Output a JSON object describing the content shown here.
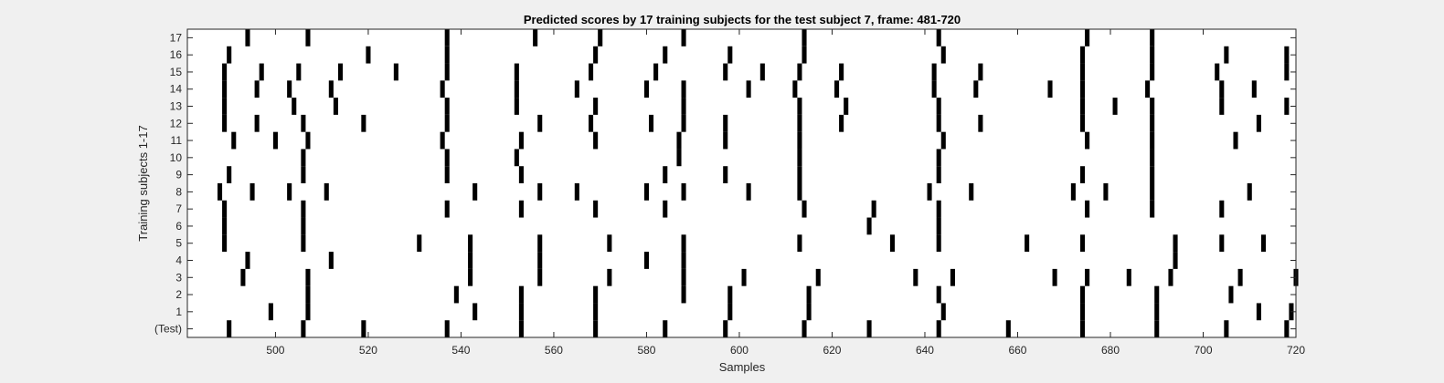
{
  "chart_data": {
    "type": "scatter",
    "title": "Predicted scores by 17 training subjects for the test subject 7, frame: 481-720",
    "xlabel": "Samples",
    "ylabel": "Training subjects 1-17",
    "xlim": [
      481,
      720
    ],
    "ylim": [
      -0.5,
      17.5
    ],
    "x_ticks": [
      500,
      520,
      540,
      560,
      580,
      600,
      620,
      640,
      660,
      680,
      700,
      720
    ],
    "y_tick_labels": [
      "(Test)",
      "1",
      "2",
      "3",
      "4",
      "5",
      "6",
      "7",
      "8",
      "9",
      "10",
      "11",
      "12",
      "13",
      "14",
      "15",
      "16",
      "17"
    ],
    "grid": false,
    "legend": "none",
    "mark_color": "#000000",
    "plot_background": "#ffffff",
    "figure_background": "#f0f0f0",
    "rows": [
      {
        "label": "(Test)",
        "x": [
          490,
          506,
          519,
          537,
          553,
          569,
          584,
          597,
          614,
          628,
          643,
          658,
          674,
          690,
          705,
          718
        ]
      },
      {
        "label": "1",
        "x": [
          499,
          507,
          543,
          553,
          569,
          598,
          615,
          644,
          674,
          690,
          712,
          719
        ]
      },
      {
        "label": "2",
        "x": [
          507,
          539,
          553,
          569,
          588,
          598,
          615,
          643,
          674,
          690,
          706
        ]
      },
      {
        "label": "3",
        "x": [
          493,
          507,
          542,
          557,
          572,
          588,
          601,
          617,
          638,
          646,
          668,
          675,
          684,
          693,
          708,
          720
        ]
      },
      {
        "label": "4",
        "x": [
          494,
          512,
          542,
          557,
          580,
          588,
          694
        ]
      },
      {
        "label": "5",
        "x": [
          489,
          506,
          531,
          542,
          557,
          572,
          588,
          613,
          633,
          643,
          662,
          674,
          694,
          704,
          713
        ]
      },
      {
        "label": "6",
        "x": [
          489,
          506,
          628,
          643
        ]
      },
      {
        "label": "7",
        "x": [
          489,
          506,
          537,
          553,
          569,
          584,
          614,
          629,
          643,
          675,
          689,
          704
        ]
      },
      {
        "label": "8",
        "x": [
          488,
          495,
          503,
          511,
          543,
          557,
          565,
          580,
          588,
          602,
          613,
          641,
          650,
          672,
          679,
          689,
          710
        ]
      },
      {
        "label": "9",
        "x": [
          490,
          506,
          537,
          553,
          584,
          597,
          613,
          643,
          674,
          689
        ]
      },
      {
        "label": "10",
        "x": [
          506,
          537,
          552,
          587,
          613,
          643,
          689
        ]
      },
      {
        "label": "11",
        "x": [
          491,
          500,
          507,
          536,
          553,
          569,
          587,
          597,
          613,
          644,
          675,
          689,
          707
        ]
      },
      {
        "label": "12",
        "x": [
          489,
          496,
          506,
          519,
          537,
          557,
          568,
          581,
          588,
          597,
          613,
          622,
          643,
          652,
          674,
          689,
          712
        ]
      },
      {
        "label": "13",
        "x": [
          489,
          504,
          513,
          537,
          552,
          569,
          588,
          613,
          623,
          643,
          674,
          681,
          689,
          704,
          718
        ]
      },
      {
        "label": "14",
        "x": [
          489,
          496,
          503,
          512,
          536,
          552,
          565,
          580,
          588,
          602,
          612,
          621,
          642,
          651,
          667,
          674,
          688,
          704,
          711
        ]
      },
      {
        "label": "15",
        "x": [
          489,
          497,
          505,
          514,
          526,
          537,
          552,
          568,
          582,
          597,
          605,
          613,
          622,
          642,
          652,
          674,
          689,
          703,
          718
        ]
      },
      {
        "label": "16",
        "x": [
          490,
          520,
          537,
          569,
          584,
          598,
          614,
          644,
          674,
          689,
          705,
          718
        ]
      },
      {
        "label": "17",
        "x": [
          494,
          507,
          537,
          556,
          570,
          588,
          614,
          643,
          675,
          689
        ]
      }
    ]
  }
}
